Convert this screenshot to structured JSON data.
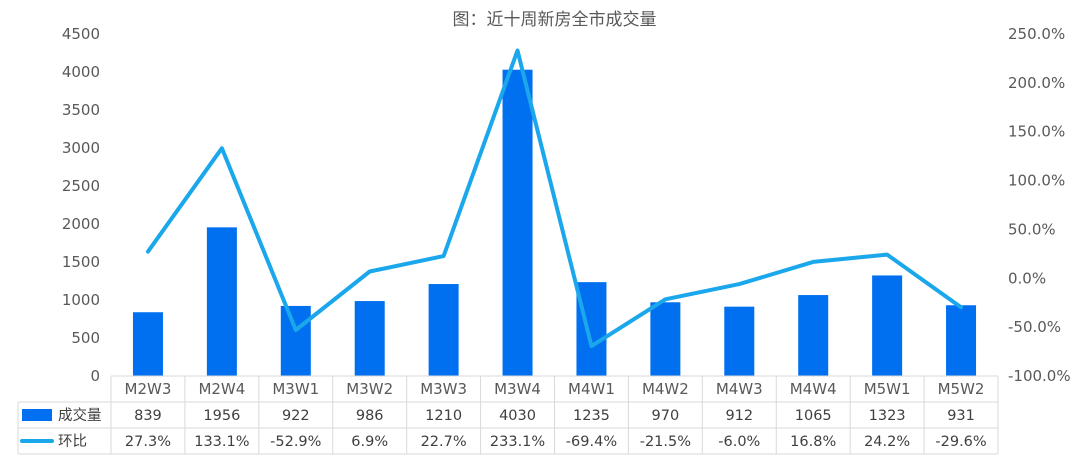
{
  "chart_data": {
    "type": "bar",
    "title": "图：近十周新房全市成交量",
    "categories": [
      "M2W3",
      "M2W4",
      "M3W1",
      "M3W2",
      "M3W3",
      "M3W4",
      "M4W1",
      "M4W2",
      "M4W3",
      "M4W4",
      "M5W1",
      "M5W2"
    ],
    "series": [
      {
        "name": "成交量",
        "type": "bar",
        "axis": "left",
        "color": "#0070F0",
        "values": [
          839,
          1956,
          922,
          986,
          1210,
          4030,
          1235,
          970,
          912,
          1065,
          1323,
          931
        ],
        "labels": [
          "839",
          "1956",
          "922",
          "986",
          "1210",
          "4030",
          "1235",
          "970",
          "912",
          "1065",
          "1323",
          "931"
        ]
      },
      {
        "name": "环比",
        "type": "line",
        "axis": "right",
        "color": "#1AA7EC",
        "values": [
          27.3,
          133.1,
          -52.9,
          6.9,
          22.7,
          233.1,
          -69.4,
          -21.5,
          -6.0,
          16.8,
          24.2,
          -29.6
        ],
        "labels": [
          "27.3%",
          "133.1%",
          "-52.9%",
          "6.9%",
          "22.7%",
          "233.1%",
          "-69.4%",
          "-21.5%",
          "-6.0%",
          "16.8%",
          "24.2%",
          "-29.6%"
        ]
      }
    ],
    "ylim_left": [
      0,
      4500
    ],
    "yticks_left": [
      "0",
      "500",
      "1000",
      "1500",
      "2000",
      "2500",
      "3000",
      "3500",
      "4000",
      "4500"
    ],
    "ylim_right": [
      -100,
      250
    ],
    "yticks_right": [
      "-100.0%",
      "-50.0%",
      "0.0%",
      "50.0%",
      "100.0%",
      "150.0%",
      "200.0%",
      "250.0%"
    ],
    "legend": "data-table-bottom",
    "grid": false
  }
}
